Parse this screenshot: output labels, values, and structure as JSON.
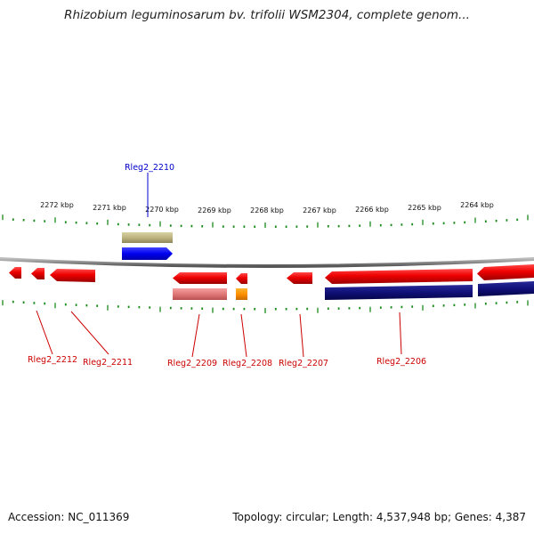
{
  "title": "Rhizobium leguminosarum bv. trifolii WSM2304, complete genom...",
  "scale_labels": [
    "2272 kbp",
    "2271 kbp",
    "2270 kbp",
    "2269 kbp",
    "2268 kbp",
    "2267 kbp",
    "2266 kbp",
    "2265 kbp",
    "2264 kbp"
  ],
  "genes": [
    {
      "id": "Rleg2_2212",
      "label": "Rleg2_2212",
      "strand": "-",
      "track": "forward",
      "color": "#cc0000"
    },
    {
      "id": "Rleg2_2211",
      "label": "Rleg2_2211",
      "strand": "-",
      "track": "forward",
      "color": "#cc0000"
    },
    {
      "id": "Rleg2_2210",
      "label": "Rleg2_2210",
      "strand": "+",
      "track": "top",
      "color": "#0000cc"
    },
    {
      "id": "Rleg2_2209",
      "label": "Rleg2_2209",
      "strand": "-",
      "track": "forward",
      "color": "#cc0000"
    },
    {
      "id": "Rleg2_2208",
      "label": "Rleg2_2208",
      "strand": "-",
      "track": "forward",
      "color": "#cc0000"
    },
    {
      "id": "Rleg2_2207",
      "label": "Rleg2_2207",
      "strand": "-",
      "track": "forward",
      "color": "#cc0000"
    },
    {
      "id": "Rleg2_2206",
      "label": "Rleg2_2206",
      "strand": "-",
      "track": "forward",
      "color": "#cc0000"
    }
  ],
  "footer": {
    "accession_label": "Accession:",
    "accession": "NC_011369",
    "topology_label": "Topology:",
    "topology": "circular",
    "length_label": "Length:",
    "length": "4,537,948 bp",
    "genes_label": "Genes:",
    "genes": "4,387"
  }
}
